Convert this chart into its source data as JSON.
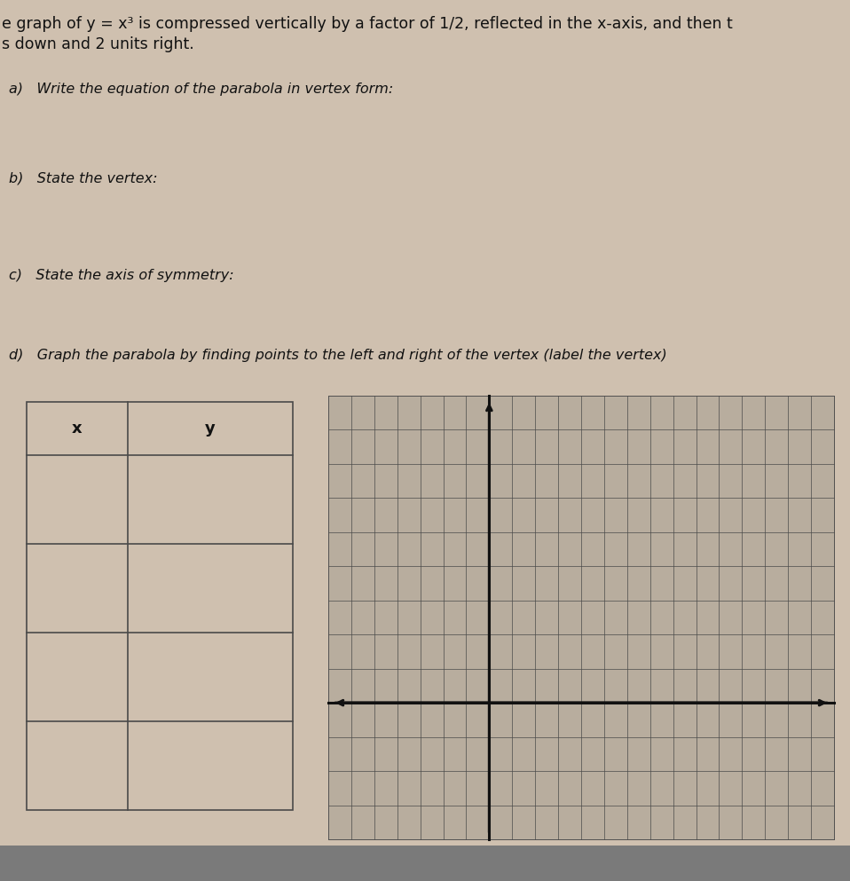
{
  "bg_color": "#cfc0af",
  "title_line1": "e graph of y = x³ is compressed vertically by a factor of 1/2, reflected in the x-axis, and then t",
  "title_line2": "s down and 2 units right.",
  "question_a": "a)   Write the equation of the parabola in vertex form:",
  "question_b": "b)   State the vertex:",
  "question_c": "c)   State the axis of symmetry:",
  "question_d": "d)   Graph the parabola by finding points to the left and right of the vertex (label the vertex)",
  "table_x_label": "x",
  "table_y_label": "y",
  "table_rows": 4,
  "grid_color": "#4a4a4a",
  "axis_color": "#111111",
  "graph_bg": "#b8ad9e",
  "taskbar_color": "#7a7a7a",
  "text_color": "#111111",
  "font_size_title": 12.5,
  "font_size_body": 11.5,
  "font_size_label": 12
}
